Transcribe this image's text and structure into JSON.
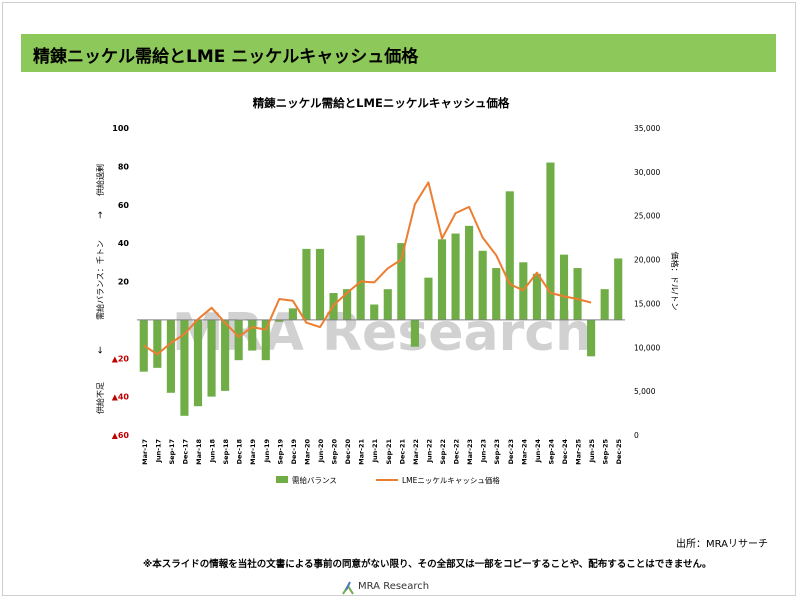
{
  "page": {
    "banner_title": "精錬ニッケル需給とLME ニッケルキャッシュ価格",
    "source": "出所：MRAリサーチ",
    "disclaimer": "※本スライドの情報を当社の文書による事前の同意がない限り、その全部又は一部をコピーすることや、配布することはできません。",
    "logo_text": "MRA Research",
    "watermark": "MRA Research"
  },
  "colors": {
    "bar": "#70ad47",
    "line": "#ed7d31",
    "negative_tick": "#c00000",
    "banner": "#8dc85a"
  },
  "chart_data": {
    "type": "bar+line",
    "title": "精錬ニッケル需給とLMEニッケルキャッシュ価格",
    "categories": [
      "Mar-17",
      "Jun-17",
      "Sep-17",
      "Dec-17",
      "Mar-18",
      "Jun-18",
      "Sep-18",
      "Dec-18",
      "Mar-19",
      "Jun-19",
      "Sep-19",
      "Dec-19",
      "Mar-20",
      "Jun-20",
      "Sep-20",
      "Dec-20",
      "Mar-21",
      "Jun-21",
      "Sep-21",
      "Dec-21",
      "Mar-22",
      "Jun-22",
      "Sep-22",
      "Dec-22",
      "Mar-23",
      "Jun-23",
      "Sep-23",
      "Dec-23",
      "Mar-24",
      "Jun-24",
      "Sep-24",
      "Dec-24",
      "Mar-25",
      "Jun-25",
      "Sep-25",
      "Dec-25"
    ],
    "series": [
      {
        "name": "需給バランス",
        "type": "bar",
        "axis": "left",
        "values": [
          -27,
          -25,
          -38,
          -50,
          -45,
          -40,
          -37,
          -21,
          -16,
          -21,
          -1,
          6,
          37,
          37,
          14,
          16,
          44,
          8,
          16,
          40,
          -14,
          22,
          42,
          45,
          49,
          36,
          27,
          67,
          30,
          24,
          82,
          34,
          27,
          -19,
          16,
          32
        ]
      },
      {
        "name": "LMEニッケルキャッシュ価格",
        "type": "line",
        "axis": "right",
        "values": [
          10200,
          9200,
          10500,
          11500,
          13200,
          14500,
          12800,
          11200,
          12300,
          12000,
          15500,
          15300,
          12800,
          12300,
          14800,
          16200,
          17500,
          17400,
          19000,
          20000,
          26300,
          28800,
          22400,
          25300,
          26000,
          22500,
          20500,
          17200,
          16500,
          18500,
          16200,
          15800,
          15500,
          15100,
          null,
          null
        ]
      }
    ],
    "y_left": {
      "label": "需給バランス：千トン",
      "ylim": [
        -60,
        100
      ],
      "ticks": [
        "▲60",
        "▲40",
        "▲20",
        "",
        "20",
        "40",
        "60",
        "80",
        "100"
      ],
      "tick_values": [
        -60,
        -40,
        -20,
        0,
        20,
        40,
        60,
        80,
        100
      ]
    },
    "y_left_side_labels": {
      "bottom": "供給不足",
      "down_arrow": "←",
      "middle": "需給バランス：千トン",
      "up_arrow": "→",
      "top": "供給過剰"
    },
    "y_right": {
      "label": "価格：ドル/トン",
      "ylim": [
        0,
        35000
      ],
      "ticks": [
        "0",
        "5,000",
        "10,000",
        "15,000",
        "20,000",
        "25,000",
        "30,000",
        "35,000"
      ],
      "tick_values": [
        0,
        5000,
        10000,
        15000,
        20000,
        25000,
        30000,
        35000
      ]
    },
    "legend": {
      "placement": "bottom",
      "items": [
        "需給バランス",
        "LMEニッケルキャッシュ価格"
      ]
    },
    "grid": false
  }
}
